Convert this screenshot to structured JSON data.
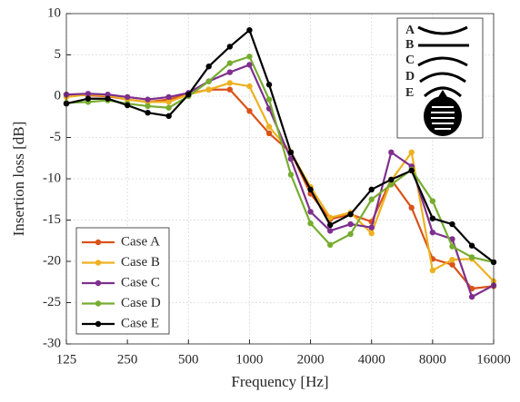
{
  "chart_data": {
    "type": "line",
    "xlabel": "Frequency [Hz]",
    "ylabel": "Insertion loss [dB]",
    "log_x": true,
    "grid": true,
    "legend_position": "lower left",
    "xlim": [
      125,
      16000
    ],
    "xticks": [
      125,
      250,
      500,
      1000,
      2000,
      4000,
      8000,
      16000
    ],
    "ylim": [
      -30,
      10
    ],
    "yticks": [
      -30,
      -25,
      -20,
      -15,
      -10,
      -5,
      0,
      5,
      10
    ],
    "x": [
      125,
      160,
      200,
      250,
      315,
      400,
      500,
      630,
      800,
      1000,
      1250,
      1600,
      2000,
      2500,
      3150,
      4000,
      5000,
      6300,
      8000,
      10000,
      12500,
      16000
    ],
    "series": [
      {
        "name": "Case A",
        "color": "#d95319",
        "values": [
          0.2,
          0.1,
          0,
          -0.4,
          -0.7,
          -0.4,
          0.3,
          0.8,
          0.8,
          -1.8,
          -4.5,
          -6.8,
          -11.8,
          -14.9,
          -14.3,
          -15.2,
          -10.1,
          -13.5,
          -19.7,
          -20.4,
          -23.3,
          -23.0
        ]
      },
      {
        "name": "Case B",
        "color": "#edb120",
        "values": [
          -0.1,
          0.2,
          0.1,
          -0.4,
          -0.7,
          -0.7,
          0.2,
          0.8,
          1.6,
          1.2,
          -3.7,
          -6.8,
          -11.0,
          -14.7,
          -14.1,
          -16.6,
          -10.2,
          -6.8,
          -21.1,
          -19.8,
          -19.7,
          -22.4
        ]
      },
      {
        "name": "Case C",
        "color": "#7e2f8e",
        "values": [
          0.2,
          0.3,
          0.2,
          -0.1,
          -0.4,
          -0.1,
          0.4,
          1.8,
          2.9,
          3.8,
          -1.5,
          -7.6,
          -14.0,
          -16.3,
          -15.5,
          -15.9,
          -6.8,
          -8.5,
          -16.5,
          -17.3,
          -24.3,
          -22.9
        ]
      },
      {
        "name": "Case D",
        "color": "#77ac30",
        "values": [
          -0.8,
          -0.7,
          -0.5,
          -0.9,
          -1.2,
          -1.4,
          0,
          1.8,
          4.0,
          4.8,
          -0.4,
          -9.5,
          -15.4,
          -18.0,
          -16.7,
          -12.5,
          -10.7,
          -8.9,
          -12.7,
          -18.2,
          -19.5,
          -20.1
        ]
      },
      {
        "name": "Case E",
        "color": "#000000",
        "values": [
          -0.9,
          -0.3,
          -0.3,
          -1.1,
          -2.0,
          -2.4,
          0.2,
          3.6,
          6.0,
          8.0,
          1.4,
          -6.8,
          -11.3,
          -15.6,
          -14.3,
          -11.3,
          -10.1,
          -9.0,
          -14.8,
          -15.5,
          -18.1,
          -20.1
        ]
      }
    ],
    "inset_labels": [
      "A",
      "B",
      "C",
      "D",
      "E"
    ]
  }
}
